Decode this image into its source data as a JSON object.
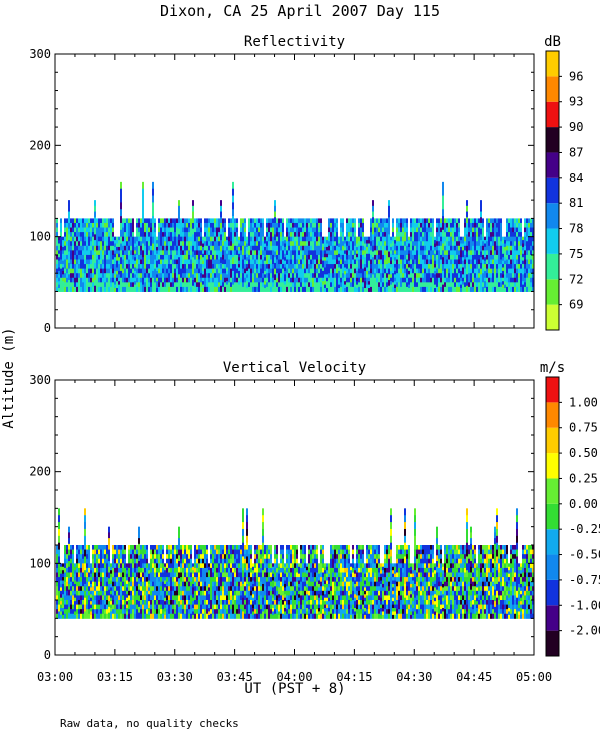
{
  "figure": {
    "title": "Dixon, CA 25 April 2007  Day 115",
    "ylabel": "Altitude (m)",
    "xlabel": "UT  (PST + 8)",
    "footnote": "Raw data, no quality checks"
  },
  "chart_data": [
    {
      "type": "heatmap",
      "title": "Reflectivity",
      "ylabel": "Altitude (m)",
      "xlabel": "UT  (PST + 8)",
      "x_ticks": [
        "03:00",
        "03:15",
        "03:30",
        "03:45",
        "04:00",
        "04:15",
        "04:30",
        "04:45",
        "05:00"
      ],
      "x_range_minutes": [
        0,
        120
      ],
      "y_ticks": [
        0,
        100,
        200,
        300
      ],
      "ylim": [
        0,
        300
      ],
      "data_altitude_range": [
        40,
        120
      ],
      "max_echo_top": 160,
      "colorbar": {
        "unit": "dB",
        "levels": [
          69,
          72,
          75,
          78,
          81,
          84,
          87,
          90,
          93,
          96
        ],
        "colors": [
          "#ccff33",
          "#66ee33",
          "#33ee99",
          "#11ccee",
          "#1188ee",
          "#1133dd",
          "#440088",
          "#220022",
          "#ee1111",
          "#ff8800",
          "#ffcc00"
        ]
      }
    },
    {
      "type": "heatmap",
      "title": "Vertical Velocity",
      "ylabel": "Altitude (m)",
      "xlabel": "UT  (PST + 8)",
      "x_ticks": [
        "03:00",
        "03:15",
        "03:30",
        "03:45",
        "04:00",
        "04:15",
        "04:30",
        "04:45",
        "05:00"
      ],
      "x_range_minutes": [
        0,
        120
      ],
      "y_ticks": [
        0,
        100,
        200,
        300
      ],
      "ylim": [
        0,
        300
      ],
      "data_altitude_range": [
        40,
        120
      ],
      "max_echo_top": 160,
      "colorbar": {
        "unit": "m/s",
        "levels": [
          "-2.00",
          "-1.00",
          "-0.75",
          "-0.50",
          "-0.25",
          "0.00",
          "0.25",
          "0.50",
          "0.75",
          "1.00"
        ],
        "colors": [
          "#220022",
          "#440088",
          "#1133dd",
          "#1188ee",
          "#11aaee",
          "#33dd33",
          "#66ee33",
          "#ffff00",
          "#ffcc00",
          "#ff8800",
          "#ee1111"
        ]
      }
    }
  ]
}
